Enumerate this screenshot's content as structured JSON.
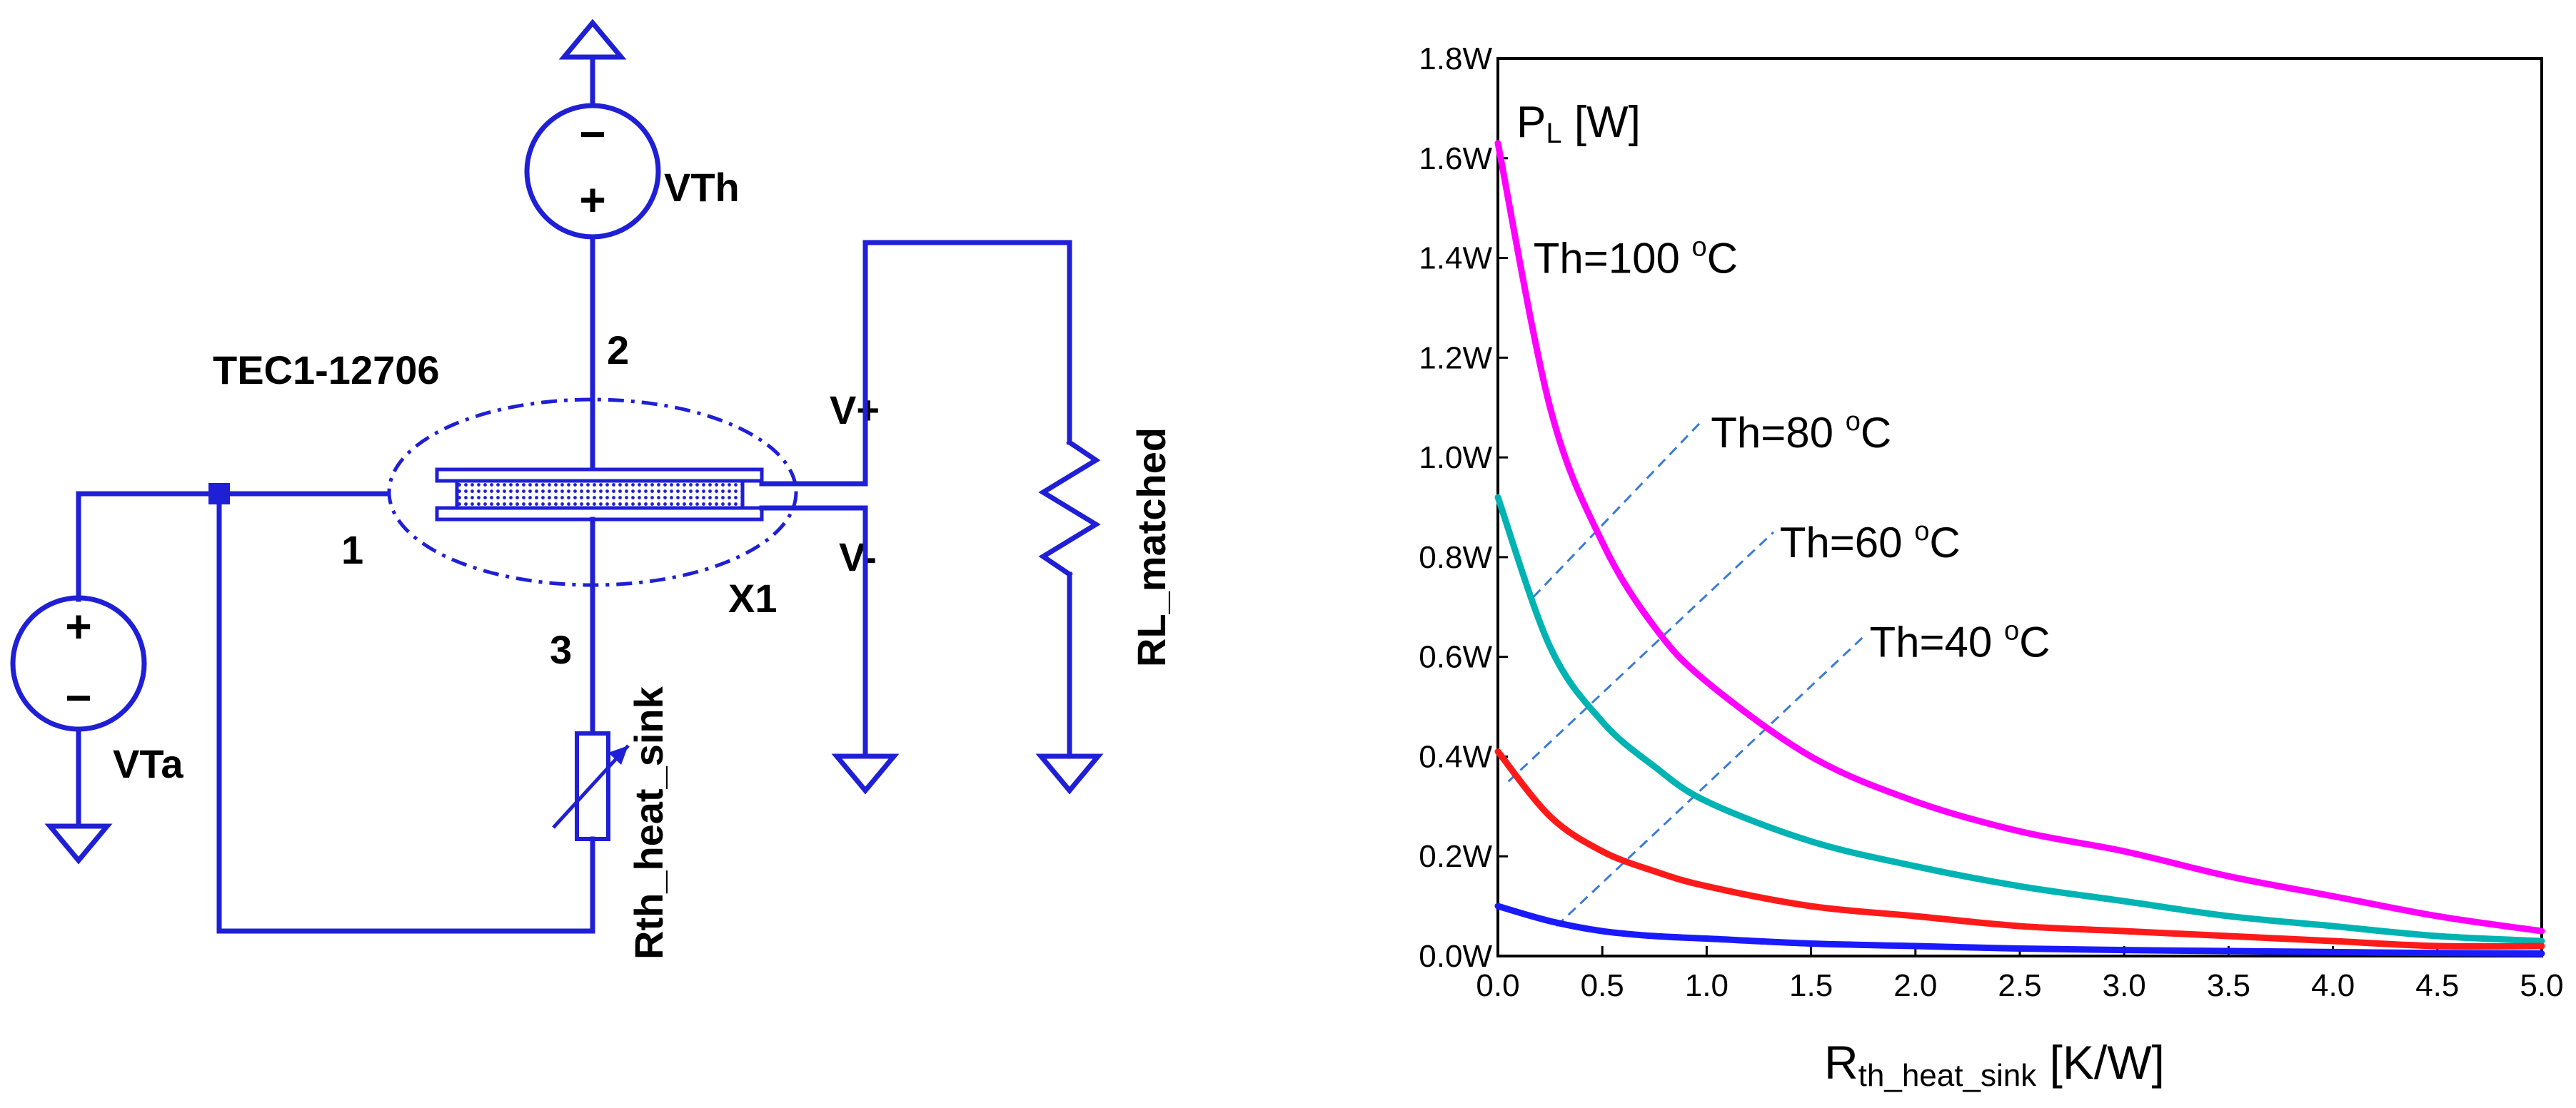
{
  "circuit": {
    "vth_label": "VTh",
    "vta_label": "VTa",
    "tec_part": "TEC1-12706",
    "instance": "X1",
    "pin1": "1",
    "pin2": "2",
    "pin3": "3",
    "vplus": "V+",
    "vminus": "V-",
    "rl_label": "RL_matched",
    "rth_label": "Rth_heat_sink",
    "plus_sign": "+",
    "minus_sign": "−"
  },
  "chart_data": {
    "type": "line",
    "ylabel_main": "P",
    "ylabel_sub": "L",
    "ylabel_unit": " [W]",
    "xlabel_main": "R",
    "xlabel_sub": "th_heat_sink",
    "xlabel_unit": " [K/W]",
    "xlim": [
      0.0,
      5.0
    ],
    "ylim": [
      0.0,
      1.8
    ],
    "x_ticks": [
      "0.0",
      "0.5",
      "1.0",
      "1.5",
      "2.0",
      "2.5",
      "3.0",
      "3.5",
      "4.0",
      "4.5",
      "5.0"
    ],
    "y_ticks": [
      "0.0W",
      "0.2W",
      "0.4W",
      "0.6W",
      "0.8W",
      "1.0W",
      "1.2W",
      "1.4W",
      "1.6W",
      "1.8W"
    ],
    "x": [
      0.0,
      0.25,
      0.5,
      0.75,
      1.0,
      1.5,
      2.0,
      2.5,
      3.0,
      3.5,
      4.0,
      4.5,
      5.0
    ],
    "series": [
      {
        "name": "Th=100 °C",
        "label_main": "Th=100 ",
        "label_sup": "o",
        "label_unit": "C",
        "color": "#ff00ff",
        "values": [
          1.63,
          1.1,
          0.83,
          0.66,
          0.55,
          0.4,
          0.31,
          0.25,
          0.21,
          0.16,
          0.12,
          0.08,
          0.05
        ]
      },
      {
        "name": "Th=80 °C",
        "label_main": "Th=80 ",
        "label_sup": "o",
        "label_unit": "C",
        "color": "#00b3b3",
        "values": [
          0.92,
          0.62,
          0.47,
          0.38,
          0.31,
          0.23,
          0.18,
          0.14,
          0.11,
          0.08,
          0.06,
          0.04,
          0.03
        ]
      },
      {
        "name": "Th=60 °C",
        "label_main": "Th=60 ",
        "label_sup": "o",
        "label_unit": "C",
        "color": "#ff1a1a",
        "values": [
          0.41,
          0.28,
          0.21,
          0.17,
          0.14,
          0.1,
          0.08,
          0.06,
          0.05,
          0.04,
          0.03,
          0.02,
          0.02
        ]
      },
      {
        "name": "Th=40 °C",
        "label_main": "Th=40 ",
        "label_sup": "o",
        "label_unit": "C",
        "color": "#1a1aff",
        "values": [
          0.1,
          0.07,
          0.05,
          0.04,
          0.035,
          0.025,
          0.02,
          0.015,
          0.012,
          0.01,
          0.008,
          0.006,
          0.005
        ]
      }
    ]
  }
}
